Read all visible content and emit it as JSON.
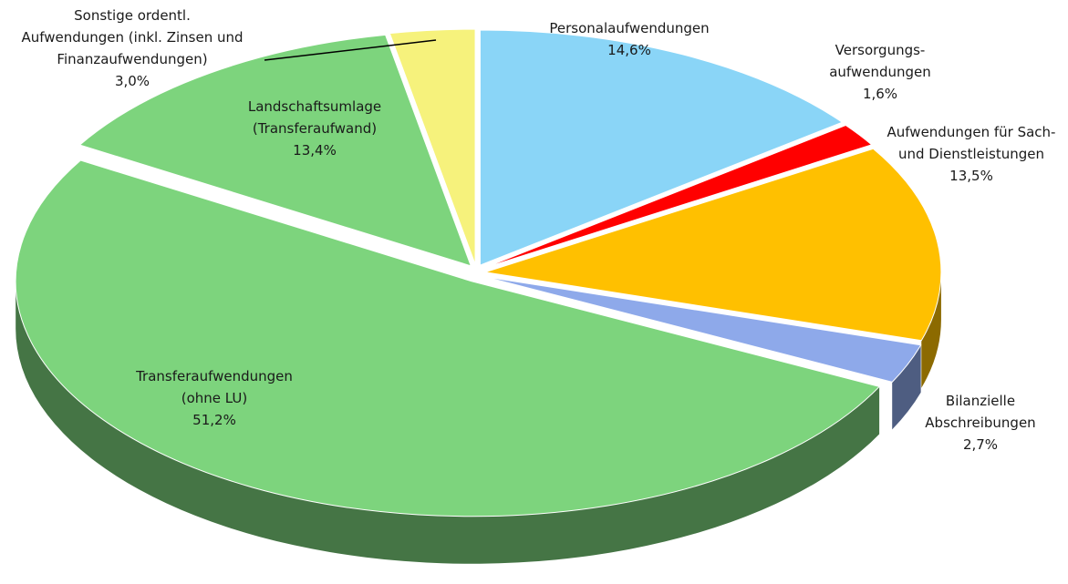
{
  "chart_data": {
    "type": "pie",
    "categories": [
      "Personalaufwendungen",
      "Versorgungs-\naufwendungen",
      "Aufwendungen für Sach-\nund Dienstleistungen",
      "Bilanzielle\nAbschreibungen",
      "Transferaufwendungen\n(ohne LU)",
      "Landschaftsumlage\n(Transferaufwand)",
      "Sonstige ordentl.\nAufwendungen (inkl. Zinsen und\nFinanzaufwendungen)"
    ],
    "values": [
      14.6,
      1.6,
      13.5,
      2.7,
      51.2,
      13.4,
      3.0
    ],
    "value_labels": [
      "14,6%",
      "1,6%",
      "13,5%",
      "2,7%",
      "51,2%",
      "13,4%",
      "3,0%"
    ],
    "colors": [
      "#8ad5f7",
      "#ff0000",
      "#ffc000",
      "#8ea9ea",
      "#7dd47d",
      "#7dd47d",
      "#f6f27c"
    ]
  }
}
